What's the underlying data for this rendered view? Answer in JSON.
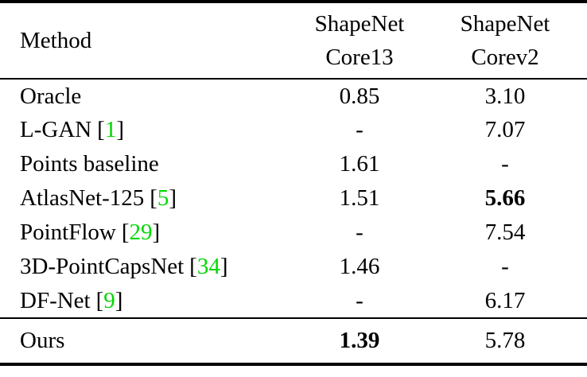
{
  "colors": {
    "citation": "#00d800",
    "text": "#000000",
    "background": "#ffffff",
    "rule": "#000000"
  },
  "punct": {
    "bracket_open": "[",
    "bracket_close": "]"
  },
  "table": {
    "header": {
      "method": "Method",
      "col2_line1": "ShapeNet",
      "col2_line2": "Core13",
      "col3_line1": "ShapeNet",
      "col3_line2": "Corev2"
    },
    "rows": [
      {
        "method": "Oracle",
        "cite": "",
        "core13": "0.85",
        "corev2": "3.10"
      },
      {
        "method": "L-GAN",
        "cite": "1",
        "core13": "-",
        "corev2": "7.07"
      },
      {
        "method": "Points baseline",
        "cite": "",
        "core13": "1.61",
        "corev2": "-"
      },
      {
        "method": "AtlasNet-125",
        "cite": "5",
        "core13": "1.51",
        "corev2": "5.66"
      },
      {
        "method": "PointFlow",
        "cite": "29",
        "core13": "-",
        "corev2": "7.54"
      },
      {
        "method": "3D-PointCapsNet",
        "cite": "34",
        "core13": "1.46",
        "corev2": "-"
      },
      {
        "method": "DF-Net",
        "cite": "9",
        "core13": "-",
        "corev2": "6.17"
      }
    ],
    "footer": {
      "method": "Ours",
      "core13": "1.39",
      "corev2": "5.78"
    }
  }
}
